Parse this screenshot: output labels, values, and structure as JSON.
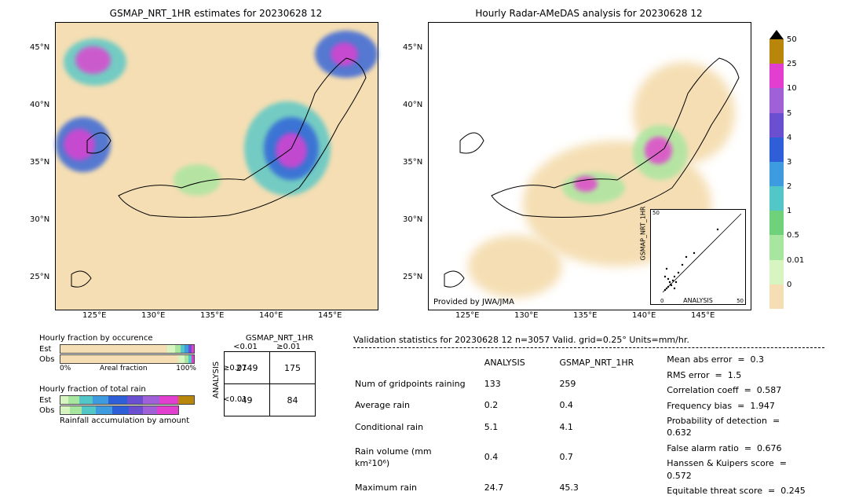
{
  "date": "20230628 12",
  "left_map": {
    "title": "GSMAP_NRT_1HR estimates for 20230628 12",
    "x_ticks": [
      "125°E",
      "130°E",
      "135°E",
      "140°E",
      "145°E"
    ],
    "y_ticks": [
      "25°N",
      "30°N",
      "35°N",
      "40°N",
      "45°N"
    ],
    "background_color": "#f5deb3",
    "land_outline": "#000000"
  },
  "right_map": {
    "title": "Hourly Radar-AMeDAS analysis for 20230628 12",
    "x_ticks": [
      "125°E",
      "130°E",
      "135°E",
      "140°E",
      "145°E"
    ],
    "y_ticks": [
      "25°N",
      "30°N",
      "35°N",
      "40°N",
      "45°N"
    ],
    "credit": "Provided by JWA/JMA",
    "background_color": "#ffffff"
  },
  "colorbar": {
    "levels": [
      "0",
      "0.01",
      "0.5",
      "1",
      "2",
      "3",
      "4",
      "5",
      "10",
      "25",
      "50"
    ],
    "colors": [
      "#f5deb3",
      "#d6f5c0",
      "#a6e69f",
      "#6fd179",
      "#53c7c7",
      "#3f9be0",
      "#2e5fd9",
      "#6a4fd0",
      "#a060d8",
      "#e23fd0",
      "#b8860b"
    ],
    "top_arrow": "#000000"
  },
  "scatter_inset": {
    "xlabel": "ANALYSIS",
    "ylabel": "GSMAP_NRT_1HR",
    "xlim": [
      0,
      50
    ],
    "ylim": [
      0,
      50
    ],
    "ticks": [
      0,
      10,
      20,
      30,
      40,
      50
    ]
  },
  "occurrence_bars": {
    "title": "Hourly fraction by occurence",
    "rows": [
      "Est",
      "Obs"
    ],
    "axis_left": "0%",
    "axis_right": "100%",
    "axis_label": "Areal fraction",
    "est_segments": [
      {
        "color": "#f5deb3",
        "pct": 80
      },
      {
        "color": "#d6f5c0",
        "pct": 6
      },
      {
        "color": "#a6e69f",
        "pct": 4
      },
      {
        "color": "#53c7c7",
        "pct": 3
      },
      {
        "color": "#3f9be0",
        "pct": 3
      },
      {
        "color": "#6a4fd0",
        "pct": 2
      },
      {
        "color": "#e23fd0",
        "pct": 2
      }
    ],
    "obs_segments": [
      {
        "color": "#f5deb3",
        "pct": 88
      },
      {
        "color": "#d6f5c0",
        "pct": 5
      },
      {
        "color": "#a6e69f",
        "pct": 3
      },
      {
        "color": "#53c7c7",
        "pct": 2
      },
      {
        "color": "#e23fd0",
        "pct": 2
      }
    ]
  },
  "totalrain_bars": {
    "title": "Hourly fraction of total rain",
    "rows": [
      "Est",
      "Obs"
    ],
    "footer": "Rainfall accumulation by amount",
    "est_segments": [
      {
        "color": "#d6f5c0",
        "pct": 6
      },
      {
        "color": "#a6e69f",
        "pct": 8
      },
      {
        "color": "#53c7c7",
        "pct": 10
      },
      {
        "color": "#3f9be0",
        "pct": 12
      },
      {
        "color": "#2e5fd9",
        "pct": 14
      },
      {
        "color": "#6a4fd0",
        "pct": 12
      },
      {
        "color": "#a060d8",
        "pct": 12
      },
      {
        "color": "#e23fd0",
        "pct": 14
      },
      {
        "color": "#b8860b",
        "pct": 12
      }
    ],
    "obs_segments": [
      {
        "color": "#d6f5c0",
        "pct": 8
      },
      {
        "color": "#a6e69f",
        "pct": 10
      },
      {
        "color": "#53c7c7",
        "pct": 12
      },
      {
        "color": "#3f9be0",
        "pct": 14
      },
      {
        "color": "#2e5fd9",
        "pct": 14
      },
      {
        "color": "#6a4fd0",
        "pct": 12
      },
      {
        "color": "#a060d8",
        "pct": 12
      },
      {
        "color": "#e23fd0",
        "pct": 18
      }
    ]
  },
  "contingency": {
    "col_header": "GSMAP_NRT_1HR",
    "row_header": "ANALYSIS",
    "col_labels": [
      "<0.01",
      "≥0.01"
    ],
    "row_labels": [
      "≥0.01",
      "<0.01"
    ],
    "cells": [
      [
        "2749",
        "175"
      ],
      [
        "49",
        "84"
      ]
    ]
  },
  "validation": {
    "title": "Validation statistics for 20230628 12  n=3057 Valid. grid=0.25° Units=mm/hr.",
    "col_headers": [
      "",
      "ANALYSIS",
      "GSMAP_NRT_1HR"
    ],
    "rows": [
      {
        "label": "Num of gridpoints raining",
        "a": "133",
        "b": "259"
      },
      {
        "label": "Average rain",
        "a": "0.2",
        "b": "0.4"
      },
      {
        "label": "Conditional rain",
        "a": "5.1",
        "b": "4.1"
      },
      {
        "label": "Rain volume (mm km²10⁶)",
        "a": "0.4",
        "b": "0.7"
      },
      {
        "label": "Maximum rain",
        "a": "24.7",
        "b": "45.3"
      }
    ],
    "scores": [
      {
        "label": "Mean abs error",
        "val": "0.3"
      },
      {
        "label": "RMS error",
        "val": "1.5"
      },
      {
        "label": "Correlation coeff",
        "val": "0.587"
      },
      {
        "label": "Frequency bias",
        "val": "1.947"
      },
      {
        "label": "Probability of detection",
        "val": "0.632"
      },
      {
        "label": "False alarm ratio",
        "val": "0.676"
      },
      {
        "label": "Hanssen & Kuipers score",
        "val": "0.572"
      },
      {
        "label": "Equitable threat score",
        "val": "0.245"
      }
    ]
  }
}
